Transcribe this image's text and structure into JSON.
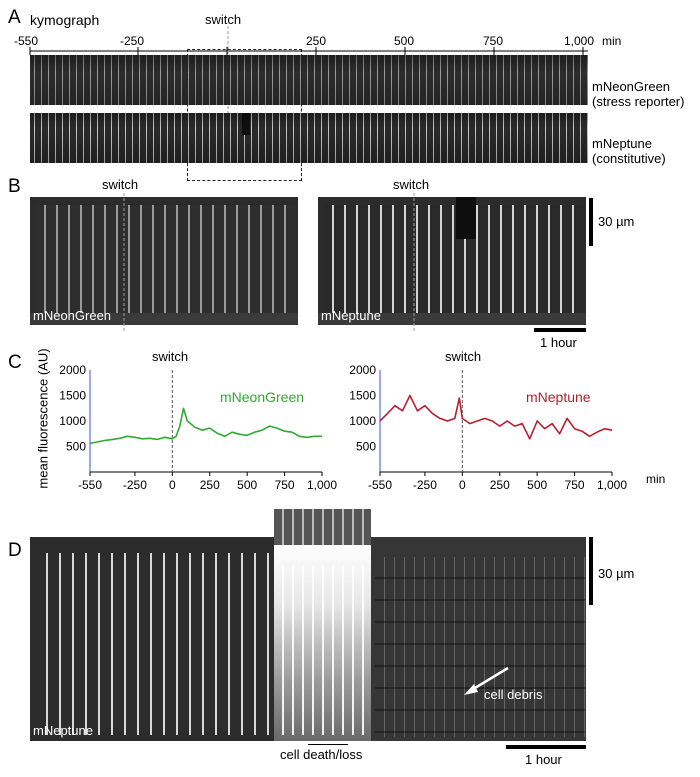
{
  "panelA": {
    "letter": "A",
    "title": "kymograph",
    "switch_label": "switch",
    "axis_ticks": [
      "-550",
      "-250",
      "250",
      "500",
      "750",
      "1,000"
    ],
    "axis_unit": "min",
    "strip1_label_line1": "mNeonGreen",
    "strip1_label_line2": "(stress reporter)",
    "strip2_label_line1": "mNeptune",
    "strip2_label_line2": "(constitutive)"
  },
  "panelB": {
    "letter": "B",
    "switch_label": "switch",
    "left_label": "mNeonGreen",
    "right_label": "mNeptune",
    "scalebar_vertical": "30 µm",
    "scalebar_horizontal": "1 hour"
  },
  "panelC": {
    "letter": "C",
    "ylabel": "mean fluorescence (AU)",
    "switch_label": "switch",
    "x_unit": "min"
  },
  "panelD": {
    "letter": "D",
    "image_label": "mNeptune",
    "debris_label": "cell debris",
    "death_label": "cell death/loss",
    "scalebar_vertical": "30 µm",
    "scalebar_horizontal": "1 hour"
  },
  "colors": {
    "green_series": "#33aa33",
    "red_series": "#b81e2d",
    "axis_left": "#3355cc",
    "background": "#ffffff"
  },
  "chart_data": [
    {
      "type": "line",
      "xlim": [
        -550,
        1000
      ],
      "ylim": [
        0,
        2000
      ],
      "yticks": [
        500,
        1000,
        1500,
        2000
      ],
      "xticks": [
        -550,
        -250,
        0,
        250,
        500,
        750,
        1000
      ],
      "xtick_labels": [
        "-550",
        "-250",
        "0",
        "250",
        "500",
        "750",
        "1,000"
      ],
      "ytick_labels": [
        "500",
        "1000",
        "1500",
        "2000"
      ],
      "series": [
        {
          "name": "mNeonGreen",
          "color": "#33aa33",
          "x": [
            -550,
            -500,
            -450,
            -400,
            -350,
            -300,
            -250,
            -200,
            -150,
            -100,
            -50,
            0,
            25,
            50,
            75,
            100,
            150,
            200,
            250,
            300,
            350,
            400,
            450,
            500,
            550,
            600,
            650,
            700,
            750,
            800,
            850,
            900,
            950,
            1000
          ],
          "y": [
            560,
            590,
            620,
            640,
            660,
            700,
            680,
            650,
            660,
            640,
            680,
            650,
            700,
            900,
            1250,
            1000,
            880,
            820,
            860,
            760,
            700,
            780,
            740,
            720,
            780,
            820,
            900,
            860,
            800,
            780,
            700,
            680,
            700,
            700
          ]
        }
      ]
    },
    {
      "type": "line",
      "xlim": [
        -550,
        1000
      ],
      "ylim": [
        0,
        2000
      ],
      "yticks": [
        500,
        1000,
        1500,
        2000
      ],
      "xticks": [
        -550,
        -250,
        0,
        250,
        500,
        750,
        1000
      ],
      "xtick_labels": [
        "-550",
        "-250",
        "0",
        "250",
        "500",
        "750",
        "1,000"
      ],
      "ytick_labels": [
        "500",
        "1000",
        "1500",
        "2000"
      ],
      "series": [
        {
          "name": "mNeptune",
          "color": "#b81e2d",
          "x": [
            -550,
            -500,
            -450,
            -400,
            -350,
            -300,
            -250,
            -200,
            -150,
            -100,
            -50,
            -20,
            0,
            25,
            50,
            100,
            150,
            200,
            250,
            300,
            350,
            400,
            450,
            500,
            550,
            600,
            650,
            700,
            750,
            800,
            850,
            900,
            950,
            1000
          ],
          "y": [
            1000,
            1150,
            1300,
            1200,
            1500,
            1200,
            1300,
            1150,
            1050,
            1000,
            1050,
            1450,
            1050,
            1000,
            950,
            1000,
            1050,
            1000,
            900,
            1000,
            900,
            950,
            650,
            1000,
            850,
            950,
            750,
            1050,
            850,
            800,
            700,
            780,
            850,
            820
          ]
        }
      ]
    }
  ]
}
